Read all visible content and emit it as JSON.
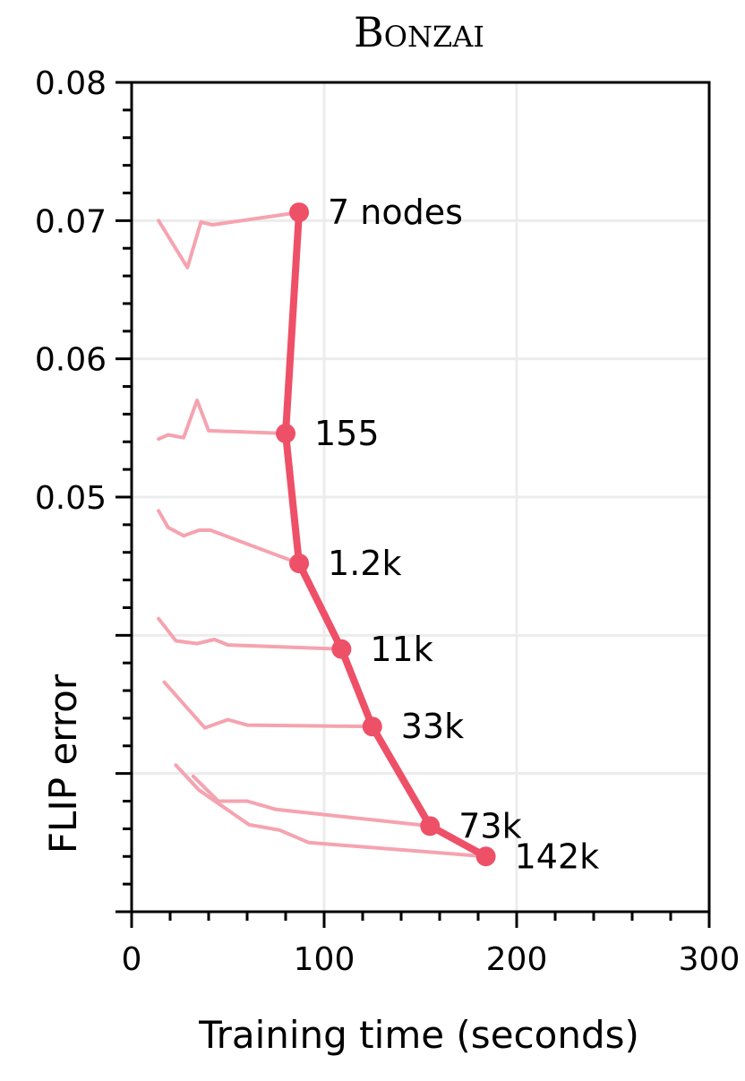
{
  "chart_data": {
    "type": "line",
    "title": "Bonzai",
    "xlabel": "Training time (seconds)",
    "ylabel": "FLIP error",
    "xlim": [
      0,
      300
    ],
    "ylim": [
      0.02,
      0.08
    ],
    "xticks": [
      0,
      100,
      200,
      300
    ],
    "xtick_labels": [
      "0",
      "100",
      "200",
      "300"
    ],
    "yticks": [
      0.05,
      0.06,
      0.07,
      0.08
    ],
    "ytick_labels": [
      "0.05",
      "0.06",
      "0.07",
      "0.08"
    ],
    "grid": true,
    "main_series": {
      "color": "#ee5068",
      "points": [
        {
          "x": 87,
          "y": 0.0706,
          "label": "7 nodes"
        },
        {
          "x": 80,
          "y": 0.0546,
          "label": "155"
        },
        {
          "x": 87,
          "y": 0.0452,
          "label": "1.2k"
        },
        {
          "x": 109,
          "y": 0.039,
          "label": "11k"
        },
        {
          "x": 125,
          "y": 0.0334,
          "label": "33k"
        },
        {
          "x": 155,
          "y": 0.0262,
          "label": "73k"
        },
        {
          "x": 184,
          "y": 0.024,
          "label": "142k"
        }
      ]
    },
    "trajectories": {
      "color": "#f5a3b0",
      "series": [
        {
          "x": [
            14,
            29,
            36,
            42,
            87
          ],
          "y": [
            0.07,
            0.0666,
            0.0699,
            0.0697,
            0.0706
          ]
        },
        {
          "x": [
            14,
            19,
            23,
            27,
            34,
            40,
            80
          ],
          "y": [
            0.0542,
            0.0545,
            0.0544,
            0.0543,
            0.057,
            0.0548,
            0.0546
          ]
        },
        {
          "x": [
            14,
            19,
            27,
            35,
            41,
            87
          ],
          "y": [
            0.049,
            0.0478,
            0.0472,
            0.0476,
            0.0476,
            0.0452
          ]
        },
        {
          "x": [
            14,
            23,
            34,
            43,
            50,
            109
          ],
          "y": [
            0.0412,
            0.0396,
            0.0394,
            0.0397,
            0.0393,
            0.039
          ]
        },
        {
          "x": [
            17,
            38,
            50,
            60,
            125
          ],
          "y": [
            0.0366,
            0.0333,
            0.0339,
            0.0335,
            0.0334
          ]
        },
        {
          "x": [
            32,
            45,
            60,
            75,
            155
          ],
          "y": [
            0.0298,
            0.028,
            0.028,
            0.0274,
            0.0262
          ]
        },
        {
          "x": [
            23,
            35,
            61,
            77,
            92,
            184
          ],
          "y": [
            0.0306,
            0.0288,
            0.0263,
            0.0259,
            0.025,
            0.024
          ]
        }
      ]
    }
  }
}
